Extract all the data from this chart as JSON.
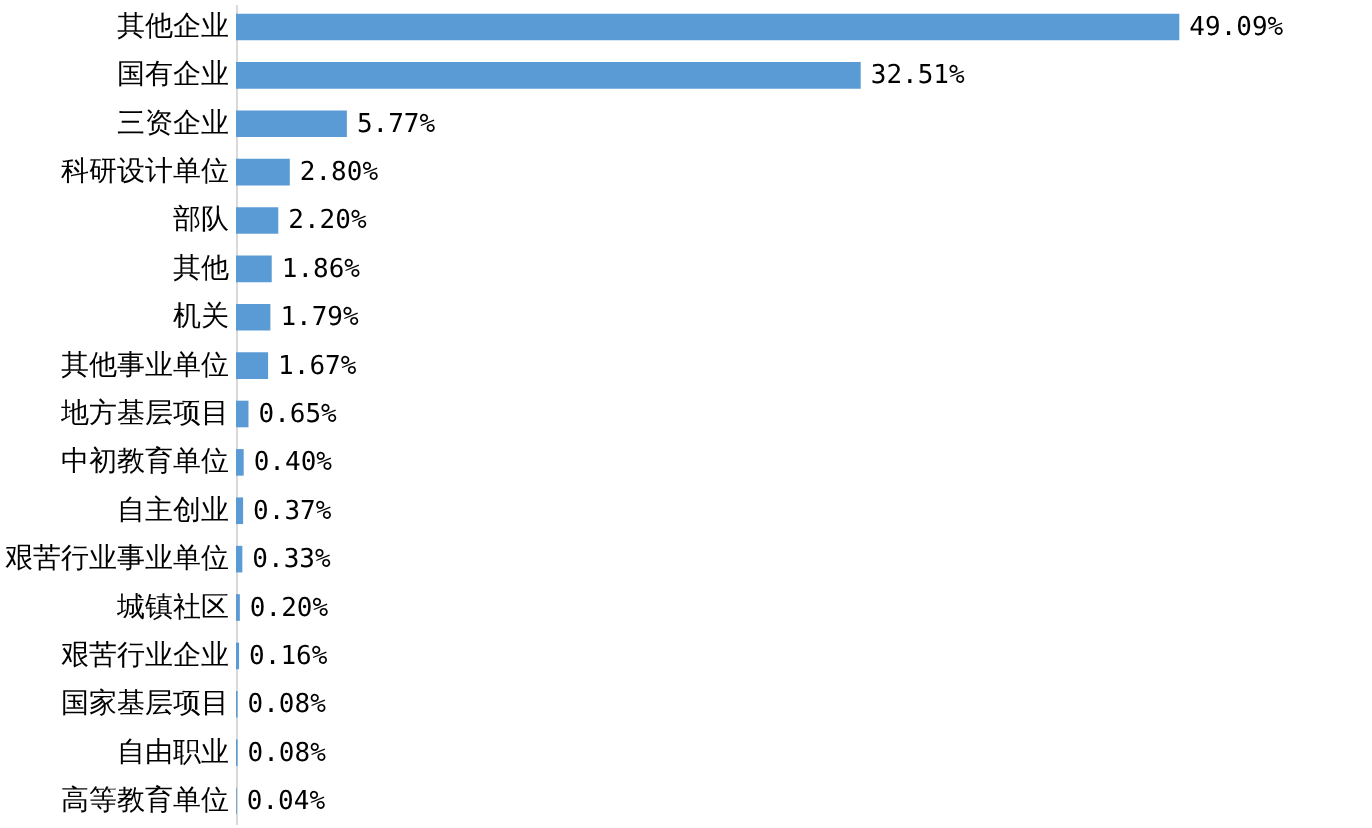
{
  "chart_data": {
    "type": "bar",
    "orientation": "horizontal",
    "categories": [
      "其他企业",
      "国有企业",
      "三资企业",
      "科研设计单位",
      "部队",
      "其他",
      "机关",
      "其他事业单位",
      "地方基层项目",
      "中初教育单位",
      "自主创业",
      "艰苦行业事业单位",
      "城镇社区",
      "艰苦行业企业",
      "国家基层项目",
      "自由职业",
      "高等教育单位"
    ],
    "values": [
      49.09,
      32.51,
      5.77,
      2.8,
      2.2,
      1.86,
      1.79,
      1.67,
      0.65,
      0.4,
      0.37,
      0.33,
      0.2,
      0.16,
      0.08,
      0.08,
      0.04
    ],
    "value_labels": [
      "49.09%",
      "32.51%",
      "5.77%",
      "2.80%",
      "2.20%",
      "1.86%",
      "1.79%",
      "1.67%",
      "0.65%",
      "0.40%",
      "0.37%",
      "0.33%",
      "0.20%",
      "0.16%",
      "0.08%",
      "0.08%",
      "0.04%"
    ],
    "color": "#5b9bd5",
    "grid": false,
    "tick_labels": "y"
  }
}
